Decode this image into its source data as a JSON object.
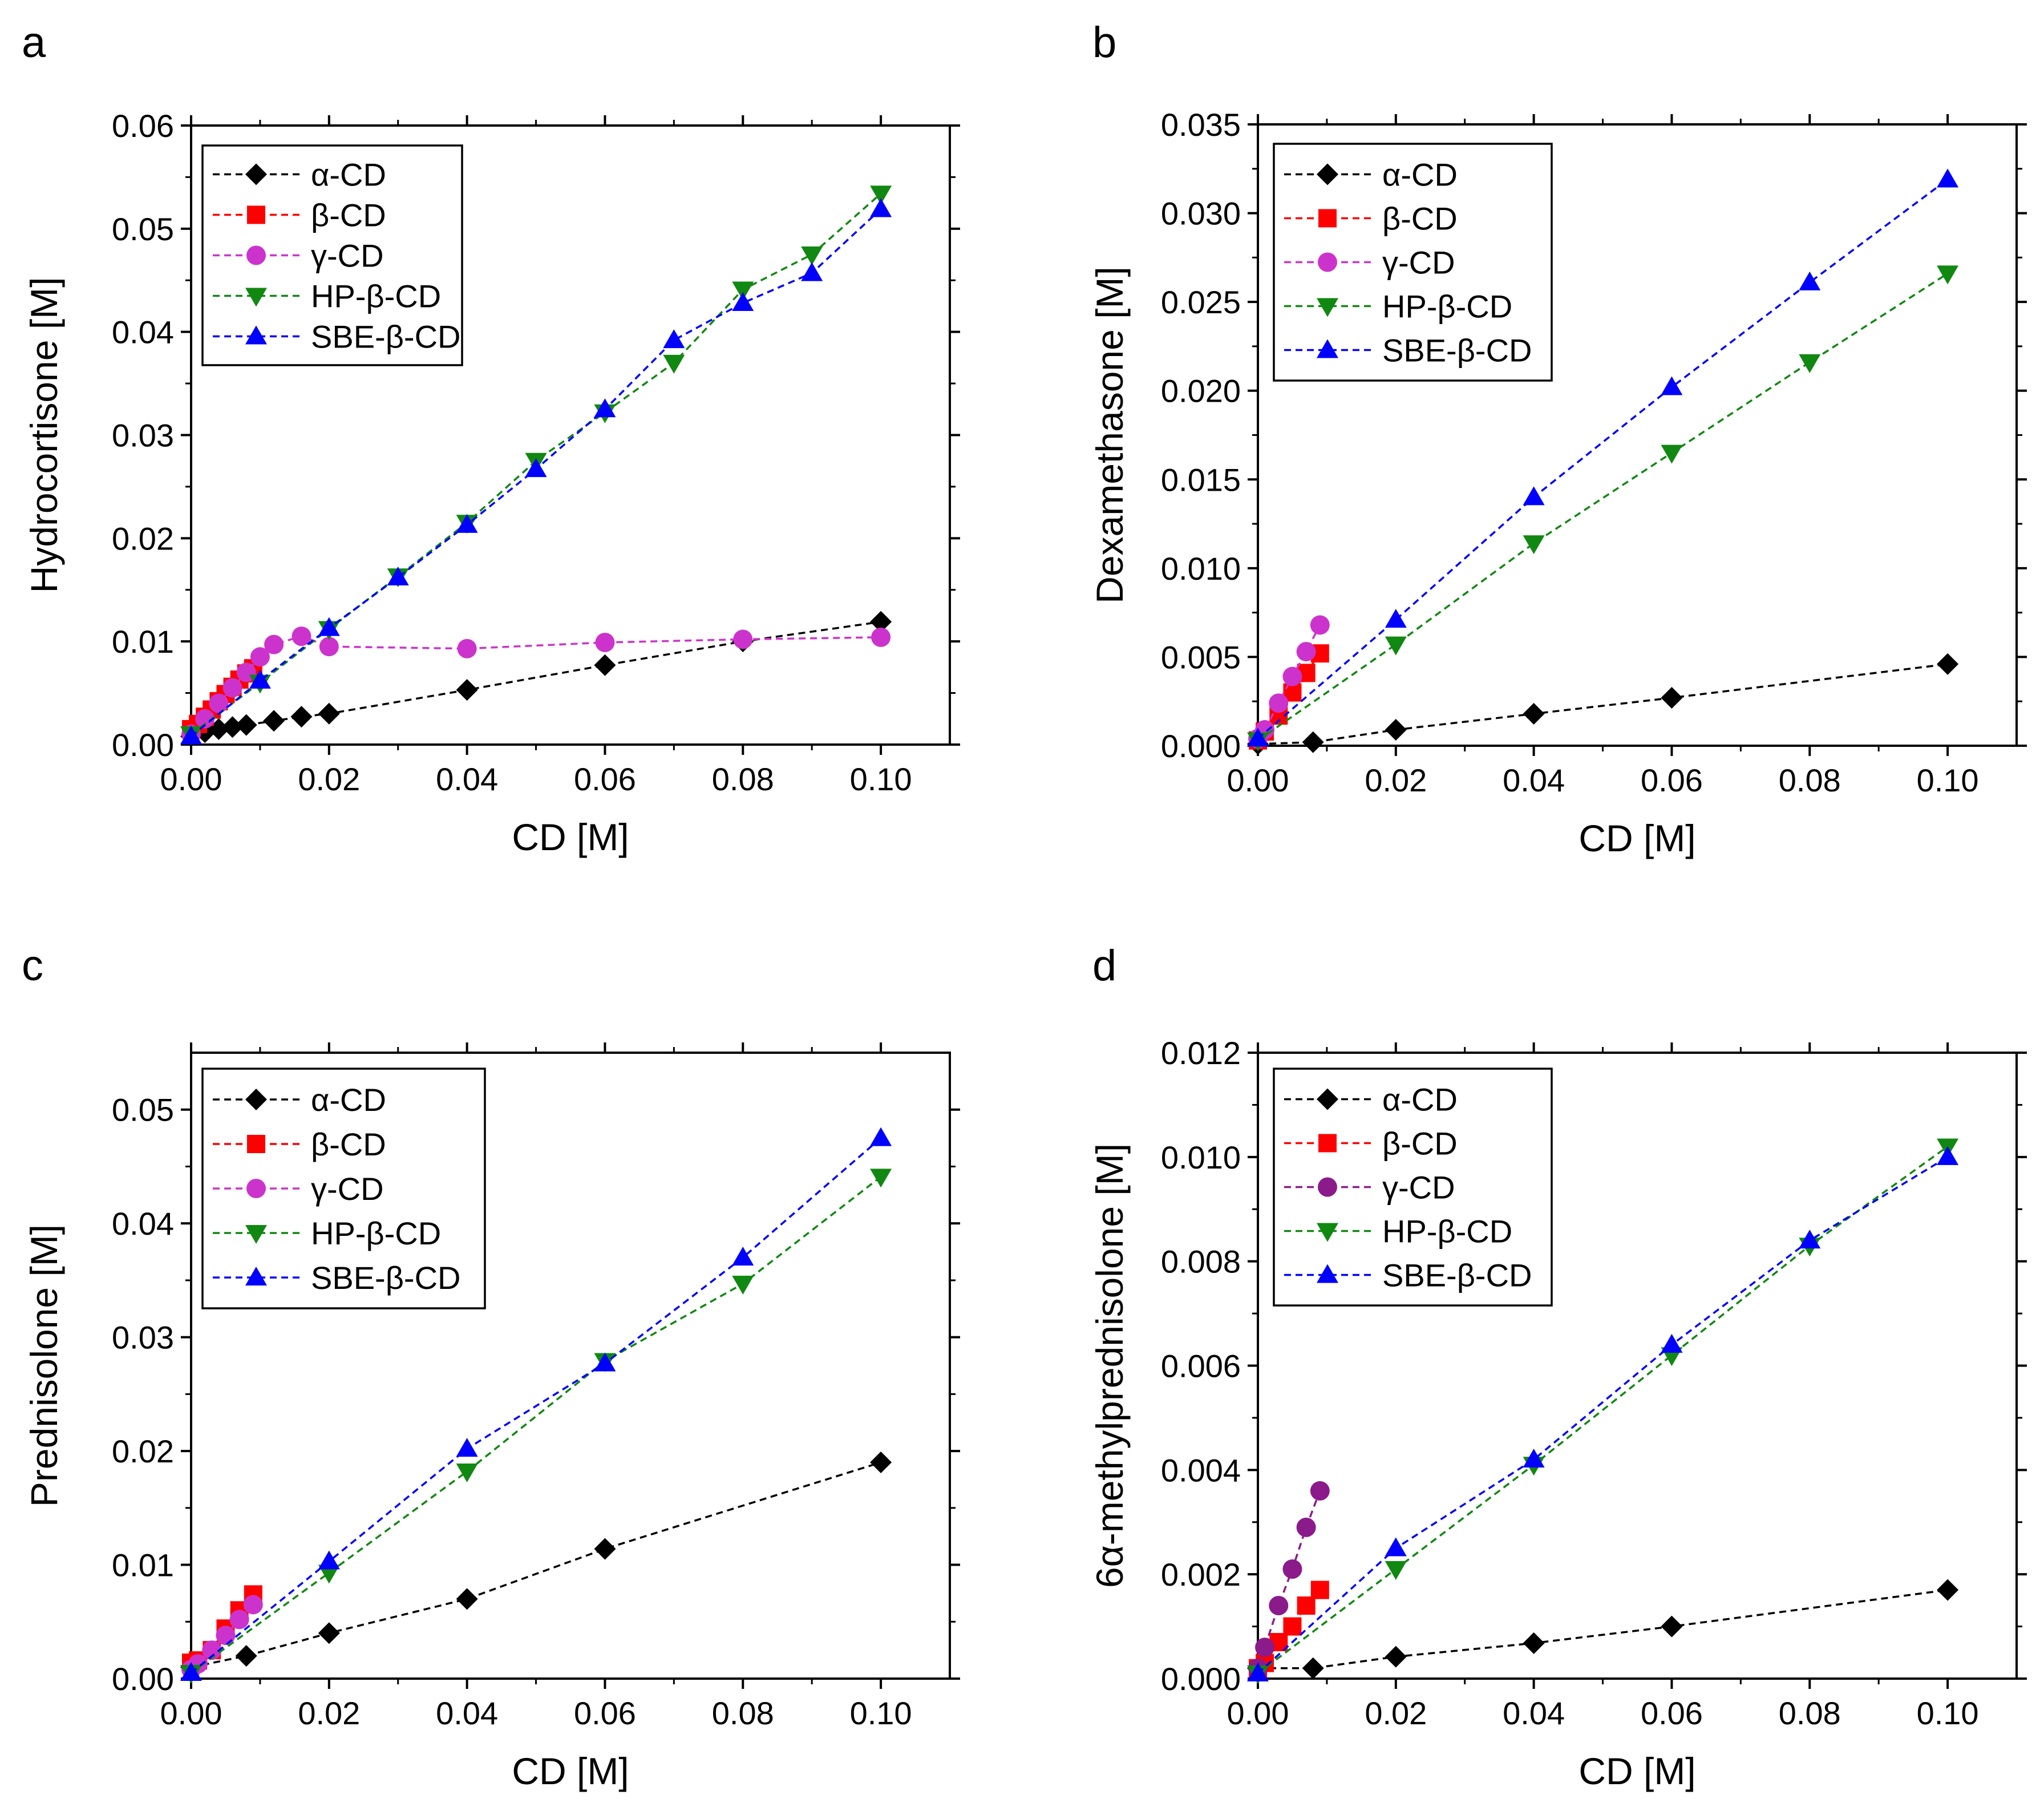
{
  "colors": {
    "alpha": "#000000",
    "beta": "#ff0000",
    "gamma": "#cc33cc",
    "gamma_d": "#8b1a8b",
    "hp": "#118811",
    "sbe": "#0000ff"
  },
  "chart_data": [
    {
      "panel": "a",
      "type": "line",
      "title": "",
      "xlabel": "CD [M]",
      "ylabel": "Hydrocortisone [M]",
      "xlim": [
        0,
        0.11
      ],
      "ylim": [
        0,
        0.06
      ],
      "xticks": [
        "0.00",
        "0.02",
        "0.04",
        "0.06",
        "0.08",
        "0.10"
      ],
      "yticks": [
        "0.00",
        "0.01",
        "0.02",
        "0.03",
        "0.04",
        "0.05",
        "0.06"
      ],
      "legend_position": "top-left",
      "series": [
        {
          "name": "α-CD",
          "color_key": "alpha",
          "marker": "diamond",
          "x": [
            0,
            0.002,
            0.004,
            0.006,
            0.008,
            0.012,
            0.016,
            0.02,
            0.04,
            0.06,
            0.08,
            0.1
          ],
          "y": [
            0.0008,
            0.0012,
            0.0015,
            0.0017,
            0.0019,
            0.0023,
            0.0027,
            0.003,
            0.0053,
            0.0077,
            0.01,
            0.0119
          ]
        },
        {
          "name": "β-CD",
          "color_key": "beta",
          "marker": "square",
          "x": [
            0,
            0.001,
            0.002,
            0.003,
            0.004,
            0.005,
            0.006,
            0.007,
            0.008,
            0.009
          ],
          "y": [
            0.0015,
            0.002,
            0.0027,
            0.0034,
            0.0042,
            0.0049,
            0.0056,
            0.0063,
            0.0069,
            0.0074
          ]
        },
        {
          "name": "γ-CD",
          "color_key": "gamma",
          "marker": "circle",
          "x": [
            0,
            0.002,
            0.004,
            0.006,
            0.008,
            0.01,
            0.012,
            0.016,
            0.02,
            0.04,
            0.06,
            0.08,
            0.1
          ],
          "y": [
            0.001,
            0.0025,
            0.004,
            0.0055,
            0.007,
            0.0085,
            0.0097,
            0.0105,
            0.0095,
            0.0093,
            0.0099,
            0.0102,
            0.0104
          ]
        },
        {
          "name": "HP-β-CD",
          "color_key": "hp",
          "marker": "triangle-down",
          "x": [
            0,
            0.01,
            0.02,
            0.03,
            0.04,
            0.05,
            0.06,
            0.07,
            0.08,
            0.09,
            0.1
          ],
          "y": [
            0.001,
            0.006,
            0.0112,
            0.0163,
            0.0215,
            0.0275,
            0.0322,
            0.037,
            0.0441,
            0.0475,
            0.0534
          ]
        },
        {
          "name": "SBE-β-CD",
          "color_key": "sbe",
          "marker": "triangle-up",
          "x": [
            0,
            0.01,
            0.02,
            0.03,
            0.04,
            0.05,
            0.06,
            0.07,
            0.08,
            0.09,
            0.1
          ],
          "y": [
            0.0008,
            0.0062,
            0.0113,
            0.0162,
            0.0213,
            0.0267,
            0.0325,
            0.0392,
            0.0428,
            0.0457,
            0.0519
          ]
        }
      ]
    },
    {
      "panel": "b",
      "type": "line",
      "title": "",
      "xlabel": "CD [M]",
      "ylabel": "Dexamethasone [M]",
      "xlim": [
        0,
        0.11
      ],
      "ylim": [
        0,
        0.035
      ],
      "xticks": [
        "0.00",
        "0.02",
        "0.04",
        "0.06",
        "0.08",
        "0.10"
      ],
      "yticks": [
        "0.000",
        "0.005",
        "0.010",
        "0.015",
        "0.020",
        "0.025",
        "0.030",
        "0.035"
      ],
      "legend_position": "top-left",
      "series": [
        {
          "name": "α-CD",
          "color_key": "alpha",
          "marker": "diamond",
          "x": [
            0.0,
            0.008,
            0.02,
            0.04,
            0.06,
            0.1
          ],
          "y": [
            0.0001,
            0.0002,
            0.0009,
            0.0018,
            0.0027,
            0.0046
          ]
        },
        {
          "name": "β-CD",
          "color_key": "beta",
          "marker": "square",
          "x": [
            0,
            0.001,
            0.003,
            0.005,
            0.007,
            0.009
          ],
          "y": [
            0.0003,
            0.0008,
            0.0017,
            0.003,
            0.0041,
            0.0052
          ]
        },
        {
          "name": "γ-CD",
          "color_key": "gamma",
          "marker": "circle",
          "x": [
            0,
            0.001,
            0.003,
            0.005,
            0.007,
            0.009
          ],
          "y": [
            0.0004,
            0.0009,
            0.0024,
            0.0039,
            0.0053,
            0.0068
          ]
        },
        {
          "name": "HP-β-CD",
          "color_key": "hp",
          "marker": "triangle-down",
          "x": [
            0,
            0.02,
            0.04,
            0.06,
            0.08,
            0.1
          ],
          "y": [
            0.0003,
            0.0057,
            0.0114,
            0.0165,
            0.0216,
            0.0266
          ]
        },
        {
          "name": "SBE-β-CD",
          "color_key": "sbe",
          "marker": "triangle-up",
          "x": [
            0,
            0.02,
            0.04,
            0.06,
            0.08,
            0.1
          ],
          "y": [
            0.0004,
            0.0071,
            0.014,
            0.0202,
            0.0261,
            0.0319
          ]
        }
      ]
    },
    {
      "panel": "c",
      "type": "line",
      "title": "",
      "xlabel": "CD [M]",
      "ylabel": "Prednisolone [M]",
      "xlim": [
        0,
        0.11
      ],
      "ylim": [
        0,
        0.055
      ],
      "xticks": [
        "0.00",
        "0.02",
        "0.04",
        "0.06",
        "0.08",
        "0.10"
      ],
      "yticks": [
        "0.00",
        "0.01",
        "0.02",
        "0.03",
        "0.04",
        "0.05"
      ],
      "legend_position": "top-left",
      "series": [
        {
          "name": "α-CD",
          "color_key": "alpha",
          "marker": "diamond",
          "x": [
            0,
            0.008,
            0.02,
            0.04,
            0.06,
            0.1
          ],
          "y": [
            0.001,
            0.002,
            0.004,
            0.007,
            0.0114,
            0.019
          ]
        },
        {
          "name": "β-CD",
          "color_key": "beta",
          "marker": "square",
          "x": [
            0,
            0.001,
            0.003,
            0.005,
            0.007,
            0.009
          ],
          "y": [
            0.0014,
            0.0016,
            0.0025,
            0.0044,
            0.006,
            0.0074
          ]
        },
        {
          "name": "γ-CD",
          "color_key": "gamma",
          "marker": "circle",
          "x": [
            0,
            0.001,
            0.003,
            0.005,
            0.007,
            0.009
          ],
          "y": [
            0.0008,
            0.0013,
            0.0025,
            0.0038,
            0.0052,
            0.0065
          ]
        },
        {
          "name": "HP-β-CD",
          "color_key": "hp",
          "marker": "triangle-down",
          "x": [
            0,
            0.02,
            0.04,
            0.06,
            0.08,
            0.1
          ],
          "y": [
            0.0005,
            0.0093,
            0.0182,
            0.0279,
            0.0347,
            0.0441
          ]
        },
        {
          "name": "SBE-β-CD",
          "color_key": "sbe",
          "marker": "triangle-up",
          "x": [
            0,
            0.02,
            0.04,
            0.06,
            0.08,
            0.1
          ],
          "y": [
            0.0005,
            0.0103,
            0.0202,
            0.0277,
            0.037,
            0.0475
          ]
        }
      ]
    },
    {
      "panel": "d",
      "type": "line",
      "title": "",
      "xlabel": "CD [M]",
      "ylabel": "6α-methylprednisolone [M]",
      "xlim": [
        0,
        0.11
      ],
      "ylim": [
        0,
        0.012
      ],
      "xticks": [
        "0.00",
        "0.02",
        "0.04",
        "0.06",
        "0.08",
        "0.10"
      ],
      "yticks": [
        "0.000",
        "0.002",
        "0.004",
        "0.006",
        "0.008",
        "0.010",
        "0.012"
      ],
      "legend_position": "top-left",
      "series": [
        {
          "name": "α-CD",
          "color_key": "alpha",
          "marker": "diamond",
          "x": [
            0,
            0.008,
            0.02,
            0.04,
            0.06,
            0.1
          ],
          "y": [
            0.0002,
            0.0002,
            0.00042,
            0.00068,
            0.001,
            0.0017
          ]
        },
        {
          "name": "β-CD",
          "color_key": "beta",
          "marker": "square",
          "x": [
            0,
            0.001,
            0.003,
            0.005,
            0.007,
            0.009
          ],
          "y": [
            0.0002,
            0.0003,
            0.0007,
            0.001,
            0.0014,
            0.0017
          ]
        },
        {
          "name": "γ-CD",
          "color_key": "gamma_d",
          "marker": "circle",
          "x": [
            0,
            0.001,
            0.003,
            0.005,
            0.007,
            0.009
          ],
          "y": [
            0.0002,
            0.0006,
            0.0014,
            0.0021,
            0.0029,
            0.0036
          ]
        },
        {
          "name": "HP-β-CD",
          "color_key": "hp",
          "marker": "triangle-down",
          "x": [
            0,
            0.02,
            0.04,
            0.06,
            0.08,
            0.1
          ],
          "y": [
            0.0001,
            0.0021,
            0.0041,
            0.0062,
            0.0083,
            0.0102
          ]
        },
        {
          "name": "SBE-β-CD",
          "color_key": "sbe",
          "marker": "triangle-up",
          "x": [
            0,
            0.02,
            0.04,
            0.06,
            0.08,
            0.1
          ],
          "y": [
            0.0001,
            0.0025,
            0.0042,
            0.0064,
            0.0084,
            0.01
          ]
        }
      ]
    }
  ]
}
